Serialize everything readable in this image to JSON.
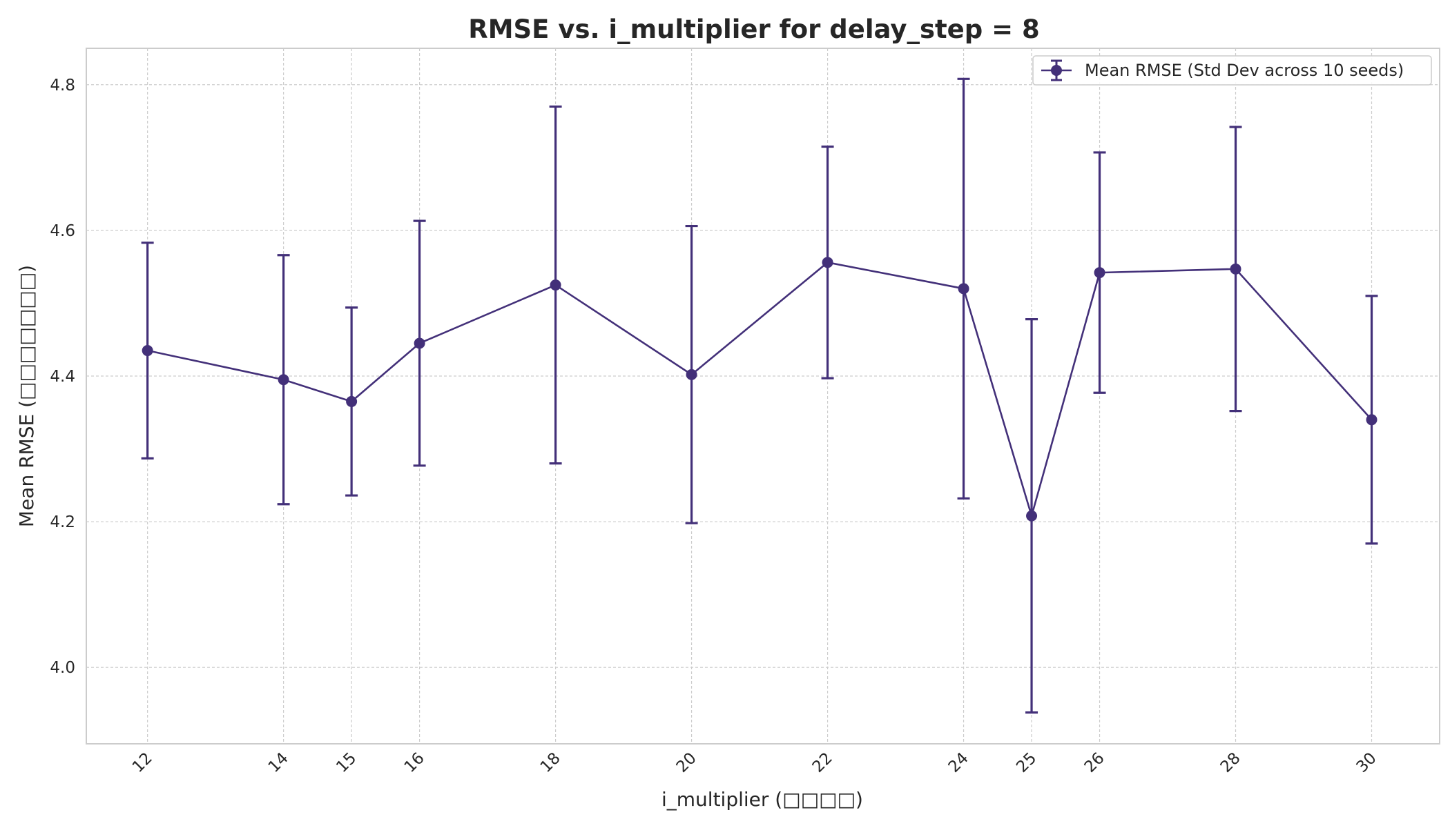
{
  "chart_data": {
    "type": "line",
    "title": "RMSE vs. i_multiplier for delay_step = 8",
    "xlabel": "i_multiplier (□□□□)",
    "ylabel": "Mean RMSE (□□□□□□□)",
    "x": [
      12,
      14,
      15,
      16,
      18,
      20,
      22,
      24,
      25,
      26,
      28,
      30
    ],
    "x_tick_labels": [
      "12",
      "14",
      "15",
      "16",
      "18",
      "20",
      "22",
      "24",
      "25",
      "26",
      "28",
      "30"
    ],
    "xlim": [
      11.1,
      31.0
    ],
    "ylim": [
      3.895,
      4.85
    ],
    "y_ticks": [
      4.0,
      4.2,
      4.4,
      4.6,
      4.8
    ],
    "y_tick_labels": [
      "4.0",
      "4.2",
      "4.4",
      "4.6",
      "4.8"
    ],
    "series": [
      {
        "name": "Mean RMSE (Std Dev across 10 seeds)",
        "values": [
          4.435,
          4.395,
          4.365,
          4.445,
          4.525,
          4.402,
          4.556,
          4.52,
          4.208,
          4.542,
          4.547,
          4.34
        ],
        "error": [
          0.148,
          0.171,
          0.129,
          0.168,
          0.245,
          0.204,
          0.159,
          0.288,
          0.27,
          0.165,
          0.195,
          0.17
        ],
        "color": "#433079"
      }
    ],
    "grid": true,
    "legend_position": "top-right",
    "x_tick_rotation": 45
  }
}
